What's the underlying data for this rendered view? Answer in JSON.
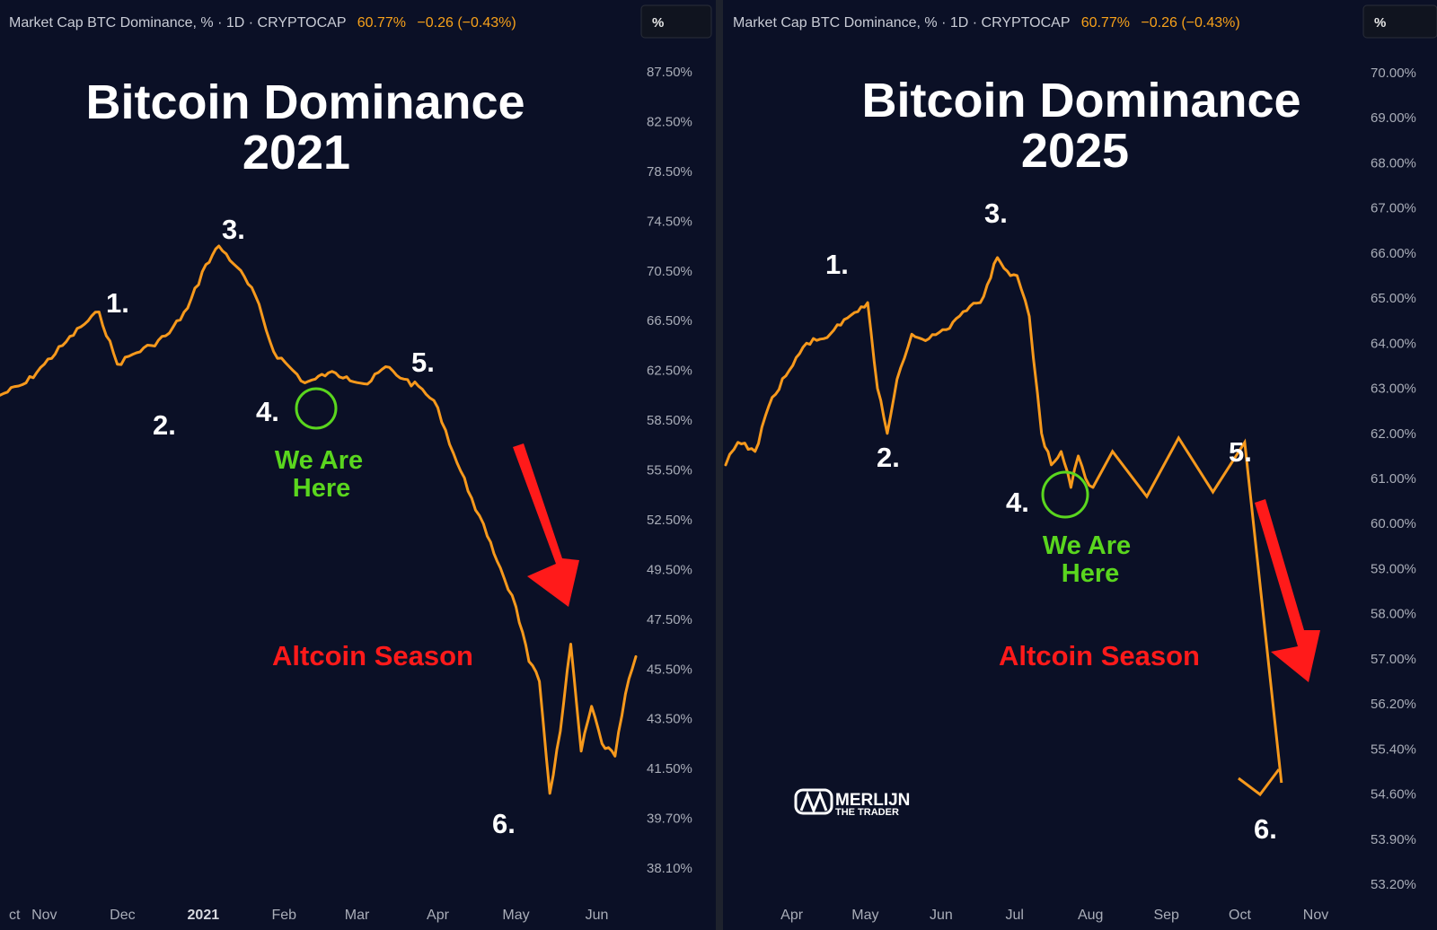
{
  "chart_data": [
    {
      "type": "line",
      "panel": "left",
      "header": {
        "symbol": "Market Cap BTC Dominance, % · 1D · CRYPTOCAP",
        "value": "60.77%",
        "change": "−0.26 (−0.43%)",
        "unit_button": "%"
      },
      "title_line1": "Bitcoin Dominance",
      "title_line2": "2021",
      "y_ticks": [
        "87.50%",
        "82.50%",
        "78.50%",
        "74.50%",
        "70.50%",
        "66.50%",
        "62.50%",
        "58.50%",
        "55.50%",
        "52.50%",
        "49.50%",
        "47.50%",
        "45.50%",
        "43.50%",
        "41.50%",
        "39.70%",
        "38.10%"
      ],
      "x_ticks": [
        "ct",
        "Nov",
        "Dec",
        "2021",
        "Feb",
        "Mar",
        "Apr",
        "May",
        "Jun"
      ],
      "x": [
        "2020-10-15",
        "2020-10-25",
        "2020-11-01",
        "2020-11-08",
        "2020-11-15",
        "2020-11-22",
        "2020-11-29",
        "2020-12-05",
        "2020-12-12",
        "2020-12-19",
        "2020-12-26",
        "2021-01-02",
        "2021-01-07",
        "2021-01-14",
        "2021-01-21",
        "2021-01-28",
        "2021-02-03",
        "2021-02-09",
        "2021-02-13",
        "2021-02-18",
        "2021-02-25",
        "2021-03-05",
        "2021-03-12",
        "2021-03-19",
        "2021-03-26",
        "2021-04-01",
        "2021-04-07",
        "2021-04-14",
        "2021-04-20",
        "2021-04-25",
        "2021-05-01",
        "2021-05-06",
        "2021-05-10",
        "2021-05-14",
        "2021-05-18",
        "2021-05-22",
        "2021-05-26",
        "2021-05-30",
        "2021-06-03",
        "2021-06-08",
        "2021-06-12",
        "2021-06-16"
      ],
      "y": [
        60.5,
        61.5,
        63.0,
        64.5,
        66.0,
        67.2,
        63.0,
        63.8,
        64.5,
        65.5,
        67.5,
        71.0,
        72.5,
        70.8,
        68.5,
        64.0,
        62.8,
        61.5,
        61.8,
        62.3,
        62.0,
        61.4,
        62.8,
        61.8,
        61.0,
        59.5,
        56.5,
        53.8,
        51.5,
        49.6,
        48.0,
        45.8,
        45.0,
        40.6,
        43.0,
        46.5,
        42.2,
        44.0,
        42.5,
        42.0,
        44.5,
        46.0
      ],
      "annotations": {
        "waves": [
          "1.",
          "2.",
          "3.",
          "4.",
          "5.",
          "6."
        ],
        "we_are_here_line1": "We Are",
        "we_are_here_line2": "Here",
        "season": "Altcoin Season"
      },
      "colors": {
        "line": "#f7991c",
        "circle": "#5ad61e",
        "arrow": "#ff1a1a"
      }
    },
    {
      "type": "line",
      "panel": "right",
      "header": {
        "symbol": "Market Cap BTC Dominance, % · 1D · CRYPTOCAP",
        "value": "60.77%",
        "change": "−0.26 (−0.43%)",
        "unit_button": "%"
      },
      "title_line1": "Bitcoin Dominance",
      "title_line2": "2025",
      "y_ticks": [
        "70.00%",
        "69.00%",
        "68.00%",
        "67.00%",
        "66.00%",
        "65.00%",
        "64.00%",
        "63.00%",
        "62.00%",
        "61.00%",
        "60.00%",
        "59.00%",
        "58.00%",
        "57.00%",
        "56.20%",
        "55.40%",
        "54.60%",
        "53.90%",
        "53.20%"
      ],
      "x_ticks": [
        "Apr",
        "May",
        "Jun",
        "Jul",
        "Aug",
        "Sep",
        "Oct",
        "Nov"
      ],
      "x": [
        "2025-03-05",
        "2025-03-10",
        "2025-03-17",
        "2025-03-24",
        "2025-03-31",
        "2025-04-07",
        "2025-04-14",
        "2025-04-21",
        "2025-04-28",
        "2025-05-02",
        "2025-05-06",
        "2025-05-10",
        "2025-05-14",
        "2025-05-20",
        "2025-05-27",
        "2025-06-03",
        "2025-06-10",
        "2025-06-17",
        "2025-06-24",
        "2025-06-28",
        "2025-07-02",
        "2025-07-07",
        "2025-07-12",
        "2025-07-16",
        "2025-07-20",
        "2025-07-24",
        "2025-07-27",
        "2025-07-30",
        "2025-08-02"
      ],
      "y": [
        61.3,
        61.8,
        61.6,
        62.8,
        63.4,
        64.0,
        64.1,
        64.4,
        64.7,
        64.9,
        63.0,
        62.0,
        63.2,
        64.2,
        64.1,
        64.3,
        64.7,
        64.9,
        65.9,
        65.6,
        65.5,
        64.6,
        62.0,
        61.3,
        61.6,
        60.8,
        61.5,
        61.0,
        60.8
      ],
      "projection": {
        "x": [
          "2025-08-02",
          "2025-08-10",
          "2025-08-24",
          "2025-09-06",
          "2025-09-20",
          "2025-10-03",
          "2025-10-18"
        ],
        "y": [
          60.8,
          61.6,
          60.6,
          61.9,
          60.7,
          61.8,
          54.8
        ]
      },
      "annotations": {
        "waves": [
          "1.",
          "2.",
          "3.",
          "4.",
          "5.",
          "6."
        ],
        "we_are_here_line1": "We Are",
        "we_are_here_line2": "Here",
        "season": "Altcoin Season",
        "logo_line1": "MERLIJN",
        "logo_line2": "THE TRADER"
      },
      "colors": {
        "line": "#f7991c",
        "circle": "#5ad61e",
        "arrow": "#ff1a1a"
      }
    }
  ]
}
